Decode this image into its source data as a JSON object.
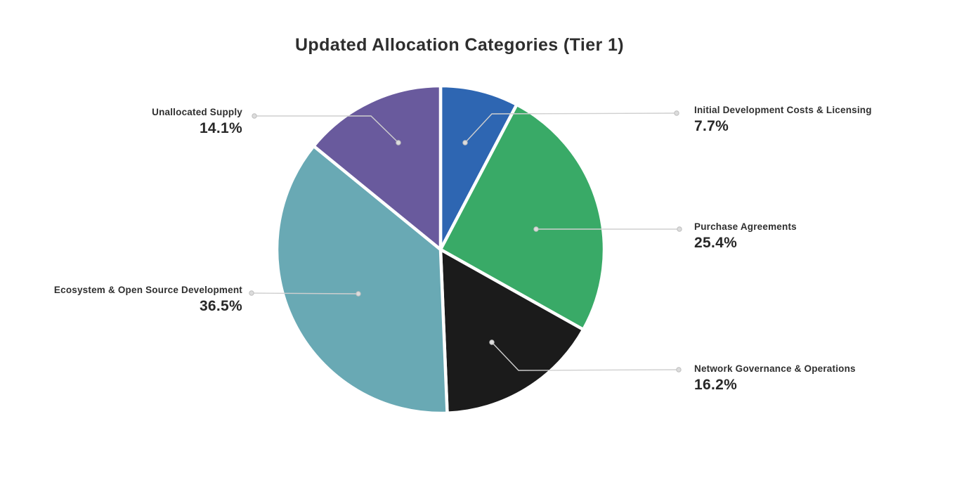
{
  "page": {
    "background_color": "#ffffff"
  },
  "chart_data": {
    "type": "pie",
    "title": "Updated Allocation Categories (Tier 1)",
    "start_angle_deg": 0,
    "direction": "clockwise",
    "legend_position": "none",
    "label_style": "external-callouts-with-leader-lines",
    "slices": [
      {
        "label": "Initial Development Costs & Licensing",
        "value": 7.7,
        "display": "7.7%",
        "color": "#2e66b2"
      },
      {
        "label": "Purchase Agreements",
        "value": 25.4,
        "display": "25.4%",
        "color": "#39aa67"
      },
      {
        "label": "Network Governance & Operations",
        "value": 16.2,
        "display": "16.2%",
        "color": "#1b1b1b"
      },
      {
        "label": "Ecosystem & Open Source Development",
        "value": 36.5,
        "display": "36.5%",
        "color": "#69a9b4"
      },
      {
        "label": "Unallocated Supply",
        "value": 14.1,
        "display": "14.1%",
        "color": "#695a9d"
      }
    ],
    "colors": {
      "leader_line": "#cfcfcf",
      "title_text": "#2e2e2e",
      "label_text": "#2f2f2f"
    }
  }
}
